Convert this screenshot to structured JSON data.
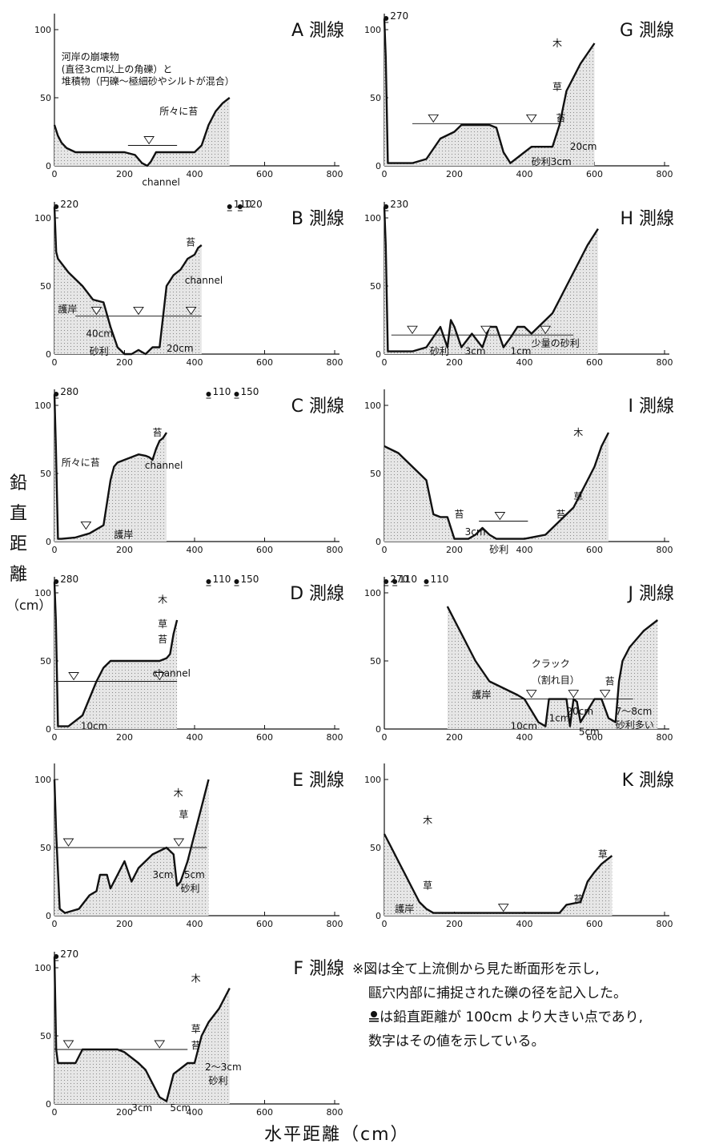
{
  "colors": {
    "ink": "#111111",
    "fill": "#d9d9d9",
    "moss": "#8c8c8c",
    "water": "#111111"
  },
  "axis": {
    "y_ticks": [
      "0",
      "50",
      "100"
    ],
    "x_ticks": [
      "0",
      "200",
      "400",
      "600",
      "800"
    ]
  },
  "ylabel_chars": [
    "鉛",
    "直",
    "距",
    "離",
    "（cm）"
  ],
  "xlabel": "水平距離（cm）",
  "note": [
    "※図は全て上流側から見た断面形を示し,",
    "甌穴内部に捕捉された礫の径を記入した。",
    "は鉛直距離が 100cm より大きい点であり,",
    "数字はその値を示している。"
  ],
  "chart_data": [
    {
      "type": "area",
      "title": "A 測線",
      "xlim": [
        0,
        800
      ],
      "ylim": [
        0,
        100
      ],
      "x": [
        0,
        10,
        20,
        35,
        60,
        100,
        150,
        200,
        230,
        250,
        265,
        275,
        290,
        320,
        360,
        400,
        420,
        440,
        460,
        480,
        500
      ],
      "y": [
        30,
        22,
        17,
        13,
        10,
        10,
        10,
        10,
        8,
        2,
        0,
        3,
        10,
        10,
        10,
        10,
        15,
        30,
        40,
        46,
        50
      ],
      "water_level": 15,
      "water_marks": [
        270
      ],
      "labels": [
        {
          "text": "河岸の崩壊物",
          "x": 20,
          "y": 80
        },
        {
          "text": "(直径3cm以上の角礫）と",
          "x": 20,
          "y": 71
        },
        {
          "text": "堆積物（円礫～極細砂やシルトが混合）",
          "x": 20,
          "y": 62
        },
        {
          "text": "所々に苔",
          "x": 300,
          "y": 40
        },
        {
          "text": "channel",
          "x": 250,
          "y": -12
        }
      ],
      "offscale": []
    },
    {
      "type": "area",
      "title": "B 測線",
      "xlim": [
        0,
        800
      ],
      "ylim": [
        0,
        100
      ],
      "x": [
        0,
        5,
        10,
        40,
        80,
        110,
        140,
        160,
        180,
        200,
        220,
        240,
        260,
        280,
        300,
        320,
        340,
        360,
        380,
        400,
        410,
        420
      ],
      "y": [
        120,
        75,
        70,
        60,
        50,
        40,
        38,
        20,
        5,
        0,
        0,
        3,
        0,
        5,
        5,
        50,
        58,
        62,
        70,
        73,
        78,
        80
      ],
      "water_level": 28,
      "water_marks": [
        120,
        240,
        390
      ],
      "labels": [
        {
          "text": "苔",
          "x": 375,
          "y": 82
        },
        {
          "text": "channel",
          "x": 372,
          "y": 54
        },
        {
          "text": "護岸",
          "x": 10,
          "y": 33
        },
        {
          "text": "40cm",
          "x": 90,
          "y": 15
        },
        {
          "text": "砂利",
          "x": 100,
          "y": 2
        },
        {
          "text": "20cm",
          "x": 320,
          "y": 4
        }
      ],
      "offscale": [
        {
          "x": 5,
          "label": "220"
        },
        {
          "x": 500,
          "label": "110"
        },
        {
          "x": 530,
          "label": "120"
        }
      ]
    },
    {
      "type": "area",
      "title": "C 測線",
      "xlim": [
        0,
        800
      ],
      "ylim": [
        0,
        100
      ],
      "x": [
        0,
        4,
        10,
        20,
        60,
        100,
        140,
        160,
        170,
        180,
        200,
        220,
        240,
        260,
        270,
        280,
        290,
        300,
        310,
        320
      ],
      "y": [
        120,
        70,
        2,
        2,
        3,
        6,
        12,
        45,
        55,
        58,
        60,
        62,
        64,
        63,
        62,
        60,
        68,
        74,
        76,
        80
      ],
      "water_level": null,
      "water_marks": [
        90
      ],
      "labels": [
        {
          "text": "苔",
          "x": 280,
          "y": 80
        },
        {
          "text": "所々に苔",
          "x": 20,
          "y": 58
        },
        {
          "text": "channel",
          "x": 258,
          "y": 56
        },
        {
          "text": "護岸",
          "x": 170,
          "y": 5
        }
      ],
      "offscale": [
        {
          "x": 5,
          "label": "280"
        },
        {
          "x": 440,
          "label": "110"
        },
        {
          "x": 520,
          "label": "150"
        }
      ]
    },
    {
      "type": "area",
      "title": "D 測線",
      "xlim": [
        0,
        800
      ],
      "ylim": [
        0,
        100
      ],
      "x": [
        0,
        4,
        10,
        40,
        80,
        120,
        140,
        160,
        180,
        200,
        250,
        300,
        320,
        330,
        340,
        350
      ],
      "y": [
        120,
        80,
        2,
        2,
        10,
        35,
        45,
        50,
        50,
        50,
        50,
        50,
        52,
        55,
        70,
        80
      ],
      "water_level": 35,
      "water_marks": [
        55,
        300
      ],
      "labels": [
        {
          "text": "木",
          "x": 295,
          "y": 95
        },
        {
          "text": "草",
          "x": 295,
          "y": 77
        },
        {
          "text": "苔",
          "x": 295,
          "y": 66
        },
        {
          "text": "channel",
          "x": 280,
          "y": 41
        },
        {
          "text": "10cm",
          "x": 75,
          "y": 2
        }
      ],
      "offscale": [
        {
          "x": 5,
          "label": "280"
        },
        {
          "x": 440,
          "label": "110"
        },
        {
          "x": 520,
          "label": "150"
        }
      ]
    },
    {
      "type": "area",
      "title": "E 測線",
      "xlim": [
        0,
        800
      ],
      "ylim": [
        0,
        100
      ],
      "x": [
        0,
        5,
        15,
        30,
        70,
        100,
        120,
        130,
        150,
        160,
        180,
        200,
        220,
        240,
        280,
        320,
        340,
        350,
        360,
        380,
        400,
        420,
        440
      ],
      "y": [
        100,
        60,
        5,
        2,
        5,
        15,
        18,
        30,
        30,
        20,
        30,
        40,
        25,
        35,
        45,
        50,
        45,
        22,
        25,
        40,
        60,
        80,
        100
      ],
      "water_level": 50,
      "water_marks": [
        40,
        355
      ],
      "labels": [
        {
          "text": "木",
          "x": 340,
          "y": 90
        },
        {
          "text": "草",
          "x": 355,
          "y": 74
        },
        {
          "text": "3cm",
          "x": 280,
          "y": 30
        },
        {
          "text": "5cm",
          "x": 370,
          "y": 30
        },
        {
          "text": "砂利",
          "x": 360,
          "y": 20
        }
      ],
      "offscale": []
    },
    {
      "type": "area",
      "title": "F 測線",
      "xlim": [
        0,
        800
      ],
      "ylim": [
        0,
        100
      ],
      "x": [
        0,
        5,
        10,
        40,
        60,
        80,
        120,
        180,
        200,
        240,
        260,
        280,
        300,
        320,
        340,
        380,
        400,
        420,
        440,
        470,
        500
      ],
      "y": [
        120,
        40,
        30,
        30,
        30,
        40,
        40,
        40,
        38,
        30,
        25,
        15,
        5,
        2,
        22,
        30,
        30,
        50,
        60,
        70,
        85
      ],
      "water_level": 40,
      "water_marks": [
        40,
        300
      ],
      "labels": [
        {
          "text": "木",
          "x": 390,
          "y": 92
        },
        {
          "text": "草",
          "x": 390,
          "y": 55
        },
        {
          "text": "苔",
          "x": 390,
          "y": 43
        },
        {
          "text": "2～3cm",
          "x": 430,
          "y": 27
        },
        {
          "text": "砂利",
          "x": 440,
          "y": 17
        },
        {
          "text": "3cm",
          "x": 220,
          "y": -3
        },
        {
          "text": "5cm",
          "x": 330,
          "y": -3
        }
      ],
      "offscale": [
        {
          "x": 5,
          "label": "270"
        }
      ]
    },
    {
      "type": "area",
      "title": "G 測線",
      "xlim": [
        0,
        800
      ],
      "ylim": [
        0,
        100
      ],
      "x": [
        0,
        4,
        10,
        30,
        80,
        120,
        160,
        200,
        220,
        250,
        280,
        300,
        320,
        340,
        360,
        400,
        420,
        440,
        480,
        500,
        520,
        540,
        560,
        600
      ],
      "y": [
        120,
        80,
        2,
        2,
        2,
        5,
        20,
        25,
        30,
        30,
        30,
        30,
        28,
        10,
        2,
        10,
        14,
        14,
        14,
        30,
        55,
        65,
        75,
        90
      ],
      "water_level": 31,
      "water_marks": [
        140,
        420
      ],
      "labels": [
        {
          "text": "木",
          "x": 480,
          "y": 90
        },
        {
          "text": "草",
          "x": 480,
          "y": 58
        },
        {
          "text": "苔",
          "x": 490,
          "y": 35
        },
        {
          "text": "20cm",
          "x": 530,
          "y": 14
        },
        {
          "text": "砂利3cm",
          "x": 420,
          "y": 3
        }
      ],
      "offscale": [
        {
          "x": 5,
          "label": "270"
        }
      ]
    },
    {
      "type": "area",
      "title": "H 測線",
      "xlim": [
        0,
        800
      ],
      "ylim": [
        0,
        100
      ],
      "x": [
        0,
        4,
        10,
        40,
        80,
        120,
        160,
        180,
        190,
        200,
        220,
        250,
        280,
        300,
        320,
        340,
        360,
        380,
        400,
        420,
        440,
        460,
        480,
        500,
        540,
        580,
        610
      ],
      "y": [
        120,
        80,
        2,
        2,
        2,
        5,
        20,
        5,
        25,
        20,
        5,
        15,
        5,
        20,
        20,
        5,
        12,
        20,
        20,
        15,
        20,
        25,
        30,
        40,
        60,
        80,
        92
      ],
      "water_level": 14,
      "water_marks": [
        80,
        290,
        460
      ],
      "labels": [
        {
          "text": "砂利",
          "x": 130,
          "y": 2
        },
        {
          "text": "3cm",
          "x": 230,
          "y": 2
        },
        {
          "text": "1cm",
          "x": 360,
          "y": 2
        },
        {
          "text": "少量の砂利",
          "x": 420,
          "y": 8
        }
      ],
      "offscale": [
        {
          "x": 5,
          "label": "230"
        }
      ]
    },
    {
      "type": "area",
      "title": "I 測線",
      "xlim": [
        0,
        800
      ],
      "ylim": [
        0,
        100
      ],
      "x": [
        0,
        40,
        80,
        100,
        120,
        140,
        160,
        180,
        200,
        240,
        260,
        280,
        300,
        320,
        340,
        360,
        400,
        440,
        460,
        480,
        500,
        520,
        540,
        560,
        580,
        600,
        620,
        640
      ],
      "y": [
        70,
        65,
        55,
        50,
        45,
        20,
        18,
        18,
        2,
        2,
        5,
        10,
        5,
        2,
        2,
        2,
        2,
        4,
        5,
        10,
        15,
        20,
        25,
        35,
        45,
        55,
        70,
        80
      ],
      "water_level": 15,
      "water_marks": [
        330
      ],
      "labels": [
        {
          "text": "木",
          "x": 540,
          "y": 80
        },
        {
          "text": "草",
          "x": 540,
          "y": 33
        },
        {
          "text": "苔",
          "x": 200,
          "y": 20
        },
        {
          "text": "苔",
          "x": 490,
          "y": 20
        },
        {
          "text": "3cm",
          "x": 230,
          "y": 7
        },
        {
          "text": "砂利",
          "x": 300,
          "y": -6
        }
      ],
      "offscale": []
    },
    {
      "type": "area",
      "title": "J 測線",
      "xlim": [
        0,
        800
      ],
      "ylim": [
        0,
        100
      ],
      "x": [
        180,
        220,
        260,
        300,
        340,
        380,
        400,
        440,
        460,
        470,
        480,
        520,
        530,
        540,
        550,
        560,
        600,
        620,
        640,
        660,
        670,
        680,
        700,
        740,
        780
      ],
      "y": [
        90,
        70,
        50,
        35,
        30,
        25,
        22,
        5,
        2,
        22,
        22,
        22,
        2,
        22,
        20,
        5,
        22,
        22,
        8,
        5,
        35,
        50,
        60,
        72,
        80
      ],
      "water_level": 22,
      "water_marks": [
        420,
        540,
        630
      ],
      "labels": [
        {
          "text": "クラック",
          "x": 420,
          "y": 48
        },
        {
          "text": "（割れ目）",
          "x": 420,
          "y": 36
        },
        {
          "text": "護岸",
          "x": 250,
          "y": 25
        },
        {
          "text": "苔",
          "x": 630,
          "y": 35
        },
        {
          "text": "20cm",
          "x": 520,
          "y": 13
        },
        {
          "text": "1cm",
          "x": 470,
          "y": 8
        },
        {
          "text": "10cm",
          "x": 360,
          "y": 2
        },
        {
          "text": "5cm",
          "x": 555,
          "y": -2
        },
        {
          "text": "7～8cm",
          "x": 660,
          "y": 13
        },
        {
          "text": "砂利多い",
          "x": 660,
          "y": 3
        }
      ],
      "offscale": [
        {
          "x": 5,
          "label": "270"
        },
        {
          "x": 30,
          "label": "110"
        },
        {
          "x": 120,
          "label": "110"
        }
      ]
    },
    {
      "type": "area",
      "title": "K 測線",
      "xlim": [
        0,
        800
      ],
      "ylim": [
        0,
        100
      ],
      "x": [
        0,
        20,
        40,
        60,
        80,
        100,
        120,
        140,
        160,
        200,
        300,
        400,
        500,
        520,
        560,
        580,
        600,
        620,
        640,
        650
      ],
      "y": [
        60,
        50,
        40,
        30,
        20,
        10,
        5,
        2,
        2,
        2,
        2,
        2,
        2,
        8,
        10,
        25,
        32,
        38,
        42,
        44
      ],
      "water_level": 2,
      "water_marks": [
        340
      ],
      "labels": [
        {
          "text": "木",
          "x": 110,
          "y": 70
        },
        {
          "text": "草",
          "x": 110,
          "y": 22
        },
        {
          "text": "草",
          "x": 610,
          "y": 45
        },
        {
          "text": "苔",
          "x": 540,
          "y": 12
        },
        {
          "text": "護岸",
          "x": 30,
          "y": 5
        }
      ],
      "offscale": []
    }
  ]
}
